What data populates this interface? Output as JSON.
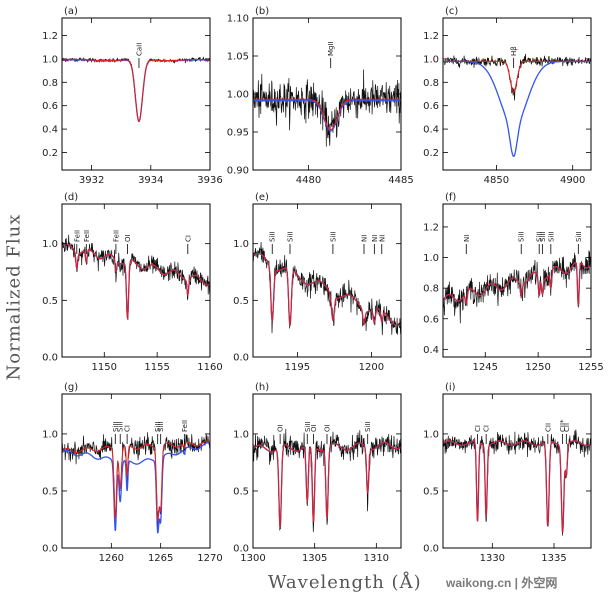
{
  "figure": {
    "xlabel": "Wavelength (Å)",
    "ylabel": "Normalized Flux",
    "watermark": "waikong.cn | 外空网"
  },
  "chart_data": [
    {
      "label": "(a)",
      "type": "line",
      "xlim": [
        3931,
        3936
      ],
      "ylim": [
        0.05,
        1.35
      ],
      "xticks": [
        3932,
        3934,
        3936
      ],
      "yticks": [
        0.2,
        0.4,
        0.6,
        0.8,
        1.0,
        1.2
      ],
      "lines": [
        {
          "ion": "CaII",
          "x": 3933.6,
          "depth": 0.53,
          "width": 0.12
        }
      ],
      "broad": [],
      "noise": 0.008,
      "base": [
        0.99,
        0.99
      ],
      "cont_wiggle": 0.005
    },
    {
      "label": "(b)",
      "type": "line",
      "xlim": [
        4477,
        4485
      ],
      "ylim": [
        0.9,
        1.1
      ],
      "xticks": [
        4480,
        4485
      ],
      "yticks": [
        0.9,
        0.95,
        1.0,
        1.05,
        1.1
      ],
      "lines": [
        {
          "ion": "MgII",
          "x": 4481.2,
          "depth": 0.04,
          "width": 0.35
        }
      ],
      "broad": [],
      "noise": 0.012,
      "base": [
        0.993,
        0.993
      ],
      "cont_wiggle": 0.0
    },
    {
      "label": "(c)",
      "type": "line",
      "xlim": [
        4815,
        4912
      ],
      "ylim": [
        0.05,
        1.35
      ],
      "xticks": [
        4850,
        4900
      ],
      "yticks": [
        0.2,
        0.4,
        0.6,
        0.8,
        1.0,
        1.2
      ],
      "lines": [
        {
          "ion": "Hβ",
          "x": 4861.3,
          "depth": 0.27,
          "width": 2.2
        }
      ],
      "broad": [
        {
          "x": 4861.3,
          "depth": 0.56,
          "width": 9
        }
      ],
      "noise": 0.02,
      "base": [
        0.98,
        0.98
      ],
      "cont_wiggle": 0.0
    },
    {
      "label": "(d)",
      "type": "line",
      "xlim": [
        1146,
        1160
      ],
      "ylim": [
        0.0,
        1.35
      ],
      "xticks": [
        1150,
        1155,
        1160
      ],
      "yticks": [
        0.0,
        0.5,
        1.0
      ],
      "lines": [
        {
          "ion": "FeII",
          "x": 1147.4,
          "depth": 0.15,
          "width": 0.08
        },
        {
          "ion": "FeII",
          "x": 1148.3,
          "depth": 0.12,
          "width": 0.08
        },
        {
          "ion": "FeII",
          "x": 1151.1,
          "depth": 0.12,
          "width": 0.08
        },
        {
          "ion": "OI",
          "x": 1152.2,
          "depth": 0.6,
          "width": 0.1
        },
        {
          "ion": "CI",
          "x": 1157.9,
          "depth": 0.2,
          "width": 0.08
        }
      ],
      "broad": [],
      "noise": 0.04,
      "base": [
        0.98,
        0.66
      ],
      "cont_wiggle": 0.03
    },
    {
      "label": "(e)",
      "type": "line",
      "xlim": [
        1192,
        1202
      ],
      "ylim": [
        0.0,
        1.35
      ],
      "xticks": [
        1195,
        1200
      ],
      "yticks": [
        0.0,
        0.5,
        1.0
      ],
      "lines": [
        {
          "ion": "SiII",
          "x": 1193.3,
          "depth": 0.6,
          "width": 0.09
        },
        {
          "ion": "SiII",
          "x": 1194.5,
          "depth": 0.65,
          "width": 0.09
        },
        {
          "ion": "SiII",
          "x": 1197.4,
          "depth": 0.4,
          "width": 0.09
        },
        {
          "ion": "NI",
          "x": 1199.5,
          "depth": 0.3,
          "width": 0.07
        },
        {
          "ion": "NI",
          "x": 1200.2,
          "depth": 0.28,
          "width": 0.07
        },
        {
          "ion": "NI",
          "x": 1200.7,
          "depth": 0.25,
          "width": 0.07
        }
      ],
      "broad": [],
      "noise": 0.05,
      "base": [
        0.9,
        0.3
      ],
      "cont_wiggle": 0.04
    },
    {
      "label": "(f)",
      "type": "line",
      "xlim": [
        1241,
        1255
      ],
      "ylim": [
        0.35,
        1.35
      ],
      "xticks": [
        1245,
        1250,
        1255
      ],
      "yticks": [
        0.4,
        0.6,
        0.8,
        1.0,
        1.2
      ],
      "lines": [
        {
          "ion": "NI",
          "x": 1243.2,
          "depth": 0.1,
          "width": 0.08
        },
        {
          "ion": "SiII",
          "x": 1248.4,
          "depth": 0.1,
          "width": 0.08
        },
        {
          "ion": "SiII",
          "x": 1250.1,
          "depth": 0.15,
          "width": 0.08
        },
        {
          "ion": "SiII",
          "x": 1250.4,
          "depth": 0.12,
          "width": 0.08
        },
        {
          "ion": "SiII",
          "x": 1251.2,
          "depth": 0.12,
          "width": 0.08
        },
        {
          "ion": "SiII",
          "x": 1253.8,
          "depth": 0.3,
          "width": 0.08
        }
      ],
      "broad": [],
      "noise": 0.04,
      "base": [
        0.72,
        0.97
      ],
      "cont_wiggle": 0.03
    },
    {
      "label": "(g)",
      "type": "line",
      "xlim": [
        1255,
        1270
      ],
      "ylim": [
        0.0,
        1.35
      ],
      "xticks": [
        1260,
        1265,
        1270
      ],
      "yticks": [
        0.0,
        0.5,
        1.0
      ],
      "lines": [
        {
          "ion": "SiII",
          "x": 1260.4,
          "depth": 0.7,
          "width": 0.12
        },
        {
          "ion": "SiII",
          "x": 1260.9,
          "depth": 0.4,
          "width": 0.12
        },
        {
          "ion": "CI",
          "x": 1261.6,
          "depth": 0.3,
          "width": 0.08
        },
        {
          "ion": "SiII",
          "x": 1264.7,
          "depth": 0.7,
          "width": 0.12
        },
        {
          "ion": "SiII",
          "x": 1265.0,
          "depth": 0.6,
          "width": 0.12
        },
        {
          "ion": "FeII",
          "x": 1267.4,
          "depth": 0.05,
          "width": 0.08
        }
      ],
      "broad": [
        {
          "x": 1262.5,
          "depth": 0.15,
          "width": 3.5
        }
      ],
      "noise": 0.04,
      "base": [
        0.85,
        0.92
      ],
      "cont_wiggle": 0.02
    },
    {
      "label": "(h)",
      "type": "line",
      "xlim": [
        1300,
        1312
      ],
      "ylim": [
        0.0,
        1.35
      ],
      "xticks": [
        1300,
        1305,
        1310
      ],
      "yticks": [
        0.0,
        0.5,
        1.0
      ],
      "lines": [
        {
          "ion": "OI",
          "x": 1302.2,
          "depth": 0.8,
          "width": 0.1
        },
        {
          "ion": "SiII",
          "x": 1304.4,
          "depth": 0.55,
          "width": 0.09
        },
        {
          "ion": "OI",
          "x": 1304.9,
          "depth": 0.75,
          "width": 0.09
        },
        {
          "ion": "OI",
          "x": 1306.0,
          "depth": 0.7,
          "width": 0.09
        },
        {
          "ion": "SiII",
          "x": 1309.3,
          "depth": 0.45,
          "width": 0.09
        }
      ],
      "broad": [],
      "noise": 0.05,
      "base": [
        0.87,
        0.9
      ],
      "cont_wiggle": 0.03
    },
    {
      "label": "(i)",
      "type": "line",
      "xlim": [
        1326,
        1338
      ],
      "ylim": [
        0.0,
        1.35
      ],
      "xticks": [
        1330,
        1335
      ],
      "yticks": [
        0.0,
        0.5,
        1.0
      ],
      "lines": [
        {
          "ion": "CI",
          "x": 1328.8,
          "depth": 0.75,
          "width": 0.08
        },
        {
          "ion": "CI",
          "x": 1329.5,
          "depth": 0.7,
          "width": 0.08
        },
        {
          "ion": "CII",
          "x": 1334.5,
          "depth": 0.8,
          "width": 0.1
        },
        {
          "ion": "CII*",
          "x": 1335.7,
          "depth": 0.85,
          "width": 0.1
        },
        {
          "ion": "CII",
          "x": 1336.0,
          "depth": 0.3,
          "width": 0.08
        }
      ],
      "broad": [],
      "noise": 0.04,
      "base": [
        0.92,
        0.92
      ],
      "cont_wiggle": 0.02
    }
  ]
}
